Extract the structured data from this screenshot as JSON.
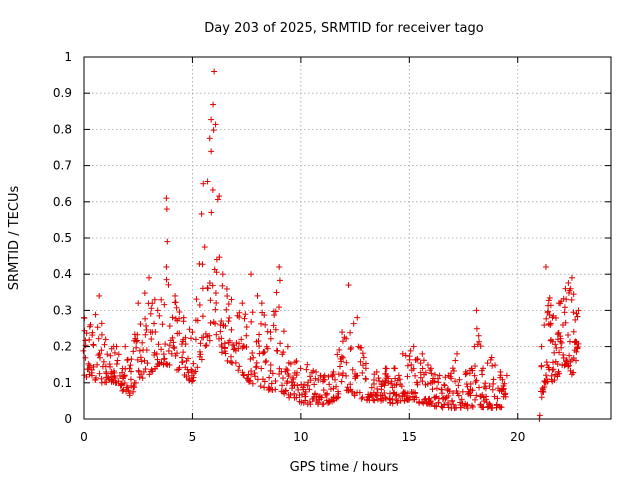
{
  "chart_data": {
    "type": "scatter",
    "title": "Day 203 of 2025, SRMTID for receiver tago",
    "xlabel": "GPS time / hours",
    "ylabel": "SRMTID / TECUs",
    "xlim": [
      0,
      24.3
    ],
    "ylim": [
      0,
      1
    ],
    "grid": true,
    "marker": "+",
    "series_color": "#e00000",
    "x_ticks": [
      "0",
      "5",
      "10",
      "15",
      "20"
    ],
    "y_ticks": [
      "0",
      "0.1",
      "0.2",
      "0.3",
      "0.4",
      "0.5",
      "0.6",
      "0.7",
      "0.8",
      "0.9",
      "1"
    ],
    "series": [
      {
        "name": "SRMTID",
        "envelope": [
          [
            0.0,
            0.1,
            0.28
          ],
          [
            0.3,
            0.12,
            0.26
          ],
          [
            0.7,
            0.1,
            0.34
          ],
          [
            1.0,
            0.1,
            0.22
          ],
          [
            1.5,
            0.1,
            0.2
          ],
          [
            1.9,
            0.07,
            0.2
          ],
          [
            2.1,
            0.06,
            0.14
          ],
          [
            2.5,
            0.1,
            0.32
          ],
          [
            3.0,
            0.12,
            0.39
          ],
          [
            3.4,
            0.15,
            0.3
          ],
          [
            3.8,
            0.15,
            0.42
          ],
          [
            4.2,
            0.14,
            0.34
          ],
          [
            4.6,
            0.12,
            0.28
          ],
          [
            5.0,
            0.1,
            0.24
          ],
          [
            5.5,
            0.18,
            0.65
          ],
          [
            6.0,
            0.25,
            0.96
          ],
          [
            6.4,
            0.18,
            0.4
          ],
          [
            6.8,
            0.15,
            0.33
          ],
          [
            7.3,
            0.12,
            0.32
          ],
          [
            7.7,
            0.1,
            0.4
          ],
          [
            8.2,
            0.08,
            0.32
          ],
          [
            8.6,
            0.08,
            0.24
          ],
          [
            9.0,
            0.08,
            0.42
          ],
          [
            9.4,
            0.06,
            0.2
          ],
          [
            9.8,
            0.05,
            0.16
          ],
          [
            10.3,
            0.04,
            0.15
          ],
          [
            10.7,
            0.04,
            0.13
          ],
          [
            11.1,
            0.04,
            0.12
          ],
          [
            11.5,
            0.05,
            0.13
          ],
          [
            11.9,
            0.07,
            0.24
          ],
          [
            12.2,
            0.08,
            0.37
          ],
          [
            12.6,
            0.06,
            0.28
          ],
          [
            13.0,
            0.05,
            0.14
          ],
          [
            13.5,
            0.05,
            0.13
          ],
          [
            13.9,
            0.05,
            0.14
          ],
          [
            14.3,
            0.04,
            0.14
          ],
          [
            14.7,
            0.05,
            0.18
          ],
          [
            15.2,
            0.05,
            0.2
          ],
          [
            15.6,
            0.04,
            0.18
          ],
          [
            16.0,
            0.04,
            0.14
          ],
          [
            16.4,
            0.03,
            0.12
          ],
          [
            16.8,
            0.03,
            0.12
          ],
          [
            17.2,
            0.03,
            0.18
          ],
          [
            17.6,
            0.03,
            0.13
          ],
          [
            18.0,
            0.03,
            0.2
          ],
          [
            18.1,
            0.05,
            0.3
          ],
          [
            18.4,
            0.03,
            0.14
          ],
          [
            18.8,
            0.03,
            0.17
          ],
          [
            19.2,
            0.03,
            0.13
          ],
          [
            19.5,
            0.03,
            0.12
          ]
        ],
        "envelope_2": [
          [
            21.1,
            0.06,
            0.2
          ],
          [
            21.3,
            0.1,
            0.42
          ],
          [
            21.6,
            0.1,
            0.28
          ],
          [
            21.9,
            0.12,
            0.32
          ],
          [
            22.2,
            0.15,
            0.36
          ],
          [
            22.5,
            0.12,
            0.39
          ],
          [
            22.8,
            0.18,
            0.3
          ]
        ],
        "outliers": [
          [
            21.0,
            0.0
          ],
          [
            21.02,
            0.01
          ],
          [
            18.2,
            0.23
          ],
          [
            3.8,
            0.61
          ],
          [
            3.82,
            0.58
          ],
          [
            3.84,
            0.49
          ]
        ]
      }
    ]
  }
}
